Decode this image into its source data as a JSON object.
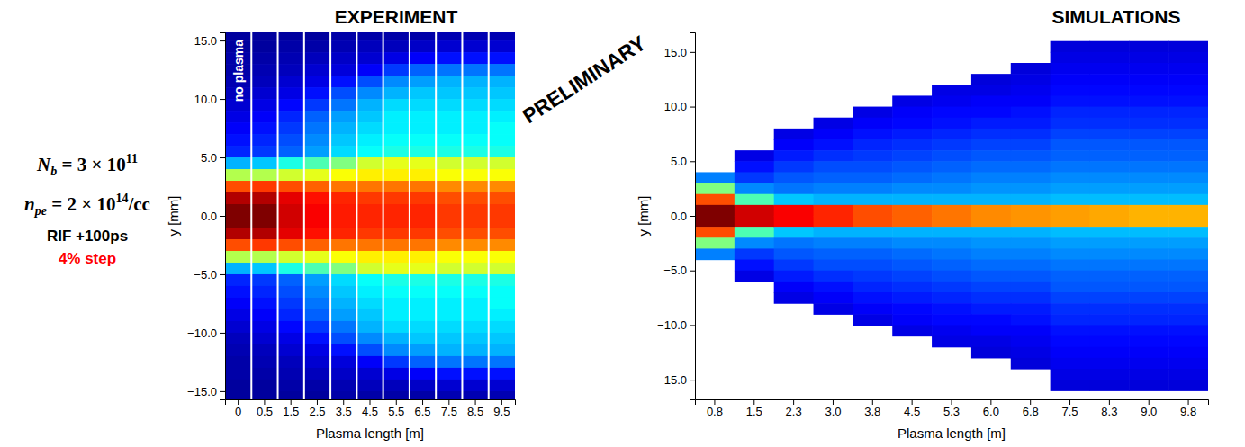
{
  "chart_data": [
    {
      "type": "heatmap",
      "title": "EXPERIMENT",
      "x_label": "Plasma length [m]",
      "y_label": "y [mm]",
      "annotation": "no plasma",
      "categories": [
        "0",
        "0.5",
        "1.5",
        "2.5",
        "3.5",
        "4.5",
        "5.5",
        "6.5",
        "7.5",
        "8.5",
        "9.5"
      ],
      "ylim": [
        -15.7,
        15.7
      ],
      "yticks": [
        {
          "value": 15,
          "label": "15.0"
        },
        {
          "value": 10,
          "label": "10.0"
        },
        {
          "value": 5,
          "label": "5.0"
        },
        {
          "value": 0,
          "label": "0.0"
        },
        {
          "value": -5,
          "label": "−5.0"
        },
        {
          "value": -10,
          "label": "−10.0"
        },
        {
          "value": -15,
          "label": "−15.0"
        }
      ],
      "color_range": [
        0,
        100
      ],
      "y_edges": [
        16,
        15,
        14,
        13,
        12,
        11,
        10,
        9,
        8,
        7,
        6,
        5,
        4,
        3,
        2,
        1,
        0,
        -1,
        -2,
        -3,
        -4,
        -5,
        -6,
        -7,
        -8,
        -9,
        -10,
        -11,
        -12,
        -13,
        -14,
        -15,
        -16
      ],
      "cells": [
        [
          3,
          3,
          4,
          4,
          5,
          6,
          8,
          10,
          12,
          14,
          16,
          30,
          55,
          80,
          95,
          100,
          100,
          95,
          80,
          55,
          30,
          16,
          14,
          12,
          10,
          8,
          6,
          5,
          4,
          4,
          3,
          3
        ],
        [
          3,
          3,
          4,
          5,
          6,
          8,
          10,
          12,
          14,
          16,
          18,
          32,
          55,
          82,
          95,
          100,
          100,
          95,
          82,
          55,
          32,
          18,
          16,
          14,
          12,
          10,
          8,
          6,
          5,
          4,
          3,
          3
        ],
        [
          3,
          4,
          5,
          6,
          8,
          10,
          13,
          16,
          18,
          20,
          22,
          40,
          58,
          80,
          90,
          92,
          92,
          90,
          80,
          58,
          40,
          22,
          20,
          18,
          16,
          13,
          10,
          8,
          6,
          5,
          4,
          3
        ],
        [
          3,
          4,
          6,
          8,
          10,
          14,
          18,
          22,
          24,
          26,
          28,
          45,
          60,
          78,
          86,
          88,
          88,
          86,
          78,
          60,
          45,
          28,
          26,
          24,
          22,
          18,
          14,
          10,
          8,
          6,
          4,
          3
        ],
        [
          4,
          5,
          7,
          9,
          14,
          20,
          24,
          28,
          30,
          32,
          34,
          50,
          62,
          76,
          84,
          85,
          85,
          84,
          76,
          62,
          50,
          34,
          32,
          30,
          28,
          24,
          20,
          14,
          9,
          7,
          5,
          4
        ],
        [
          4,
          6,
          8,
          12,
          20,
          26,
          30,
          32,
          34,
          36,
          38,
          58,
          64,
          76,
          82,
          84,
          84,
          82,
          76,
          64,
          58,
          38,
          36,
          34,
          32,
          30,
          26,
          20,
          12,
          8,
          6,
          4
        ],
        [
          4,
          6,
          10,
          18,
          26,
          30,
          34,
          36,
          36,
          38,
          40,
          60,
          64,
          76,
          82,
          84,
          84,
          82,
          76,
          64,
          60,
          40,
          38,
          36,
          36,
          34,
          30,
          26,
          18,
          10,
          6,
          4
        ],
        [
          4,
          7,
          12,
          22,
          28,
          32,
          34,
          36,
          36,
          38,
          40,
          60,
          64,
          76,
          82,
          84,
          84,
          82,
          76,
          64,
          60,
          40,
          38,
          36,
          36,
          34,
          32,
          28,
          22,
          12,
          7,
          4
        ],
        [
          5,
          8,
          14,
          24,
          30,
          32,
          34,
          36,
          36,
          38,
          40,
          58,
          62,
          74,
          80,
          82,
          82,
          80,
          74,
          62,
          58,
          40,
          38,
          36,
          36,
          34,
          32,
          30,
          24,
          14,
          8,
          5
        ],
        [
          5,
          8,
          14,
          24,
          30,
          32,
          34,
          36,
          36,
          38,
          40,
          58,
          62,
          74,
          80,
          82,
          82,
          80,
          74,
          62,
          58,
          40,
          38,
          36,
          36,
          34,
          32,
          30,
          24,
          14,
          8,
          5
        ],
        [
          5,
          8,
          14,
          24,
          30,
          32,
          34,
          36,
          38,
          38,
          40,
          58,
          62,
          74,
          80,
          82,
          82,
          80,
          74,
          62,
          58,
          40,
          38,
          38,
          36,
          34,
          32,
          30,
          24,
          14,
          8,
          5
        ]
      ]
    },
    {
      "type": "heatmap",
      "title": "SIMULATIONS",
      "x_label": "Plasma length [m]",
      "y_label": "y [mm]",
      "categories": [
        "0.8",
        "1.5",
        "2.3",
        "3.0",
        "3.8",
        "4.5",
        "5.3",
        "6.0",
        "6.8",
        "7.5",
        "8.3",
        "9.0",
        "9.8"
      ],
      "ylim": [
        -16.8,
        16.8
      ],
      "yticks": [
        {
          "value": 15,
          "label": "15.0"
        },
        {
          "value": 10,
          "label": "10.0"
        },
        {
          "value": 5,
          "label": "5.0"
        },
        {
          "value": 0,
          "label": "0.0"
        },
        {
          "value": -5,
          "label": "−5.0"
        },
        {
          "value": -10,
          "label": "−10.0"
        },
        {
          "value": -15,
          "label": "−15.0"
        }
      ],
      "color_range": [
        0,
        100
      ],
      "y_edges": [
        17,
        16,
        15,
        14,
        13,
        12,
        11,
        10,
        9,
        8,
        7,
        6,
        5,
        4,
        3,
        2,
        1,
        0,
        -1,
        -2,
        -3,
        -4,
        -5,
        -6,
        -7,
        -8,
        -9,
        -10,
        -11,
        -12,
        -13,
        -14,
        -15,
        -16,
        -17
      ],
      "cells": [
        [
          null,
          null,
          null,
          null,
          null,
          null,
          null,
          null,
          null,
          null,
          null,
          null,
          null,
          25,
          50,
          80,
          100,
          100,
          80,
          50,
          25,
          null,
          null,
          null,
          null,
          null,
          null,
          null,
          null,
          null,
          null,
          null,
          null,
          null
        ],
        [
          null,
          null,
          null,
          null,
          null,
          null,
          null,
          null,
          null,
          null,
          null,
          10,
          14,
          18,
          26,
          45,
          92,
          92,
          45,
          26,
          18,
          14,
          10,
          null,
          null,
          null,
          null,
          null,
          null,
          null,
          null,
          null,
          null,
          null
        ],
        [
          null,
          null,
          null,
          null,
          null,
          null,
          null,
          null,
          null,
          10,
          12,
          15,
          18,
          21,
          24,
          32,
          88,
          88,
          32,
          24,
          21,
          18,
          15,
          12,
          10,
          null,
          null,
          null,
          null,
          null,
          null,
          null,
          null,
          null
        ],
        [
          null,
          null,
          null,
          null,
          null,
          null,
          null,
          null,
          10,
          12,
          14,
          17,
          20,
          22,
          25,
          30,
          84,
          84,
          30,
          25,
          22,
          20,
          17,
          14,
          12,
          10,
          null,
          null,
          null,
          null,
          null,
          null,
          null,
          null
        ],
        [
          null,
          null,
          null,
          null,
          null,
          null,
          null,
          10,
          12,
          14,
          16,
          18,
          20,
          22,
          25,
          30,
          80,
          80,
          30,
          25,
          22,
          20,
          18,
          16,
          14,
          12,
          10,
          null,
          null,
          null,
          null,
          null,
          null,
          null
        ],
        [
          null,
          null,
          null,
          null,
          null,
          null,
          10,
          12,
          13,
          15,
          17,
          19,
          21,
          23,
          26,
          30,
          78,
          78,
          30,
          26,
          23,
          21,
          19,
          17,
          15,
          13,
          12,
          10,
          null,
          null,
          null,
          null,
          null,
          null
        ],
        [
          null,
          null,
          null,
          null,
          null,
          10,
          11,
          13,
          14,
          16,
          18,
          20,
          22,
          24,
          26,
          30,
          76,
          76,
          30,
          26,
          24,
          22,
          20,
          18,
          16,
          14,
          13,
          11,
          10,
          null,
          null,
          null,
          null,
          null
        ],
        [
          null,
          null,
          null,
          null,
          9,
          10,
          12,
          13,
          15,
          17,
          19,
          21,
          23,
          25,
          27,
          30,
          74,
          74,
          30,
          27,
          25,
          23,
          21,
          19,
          17,
          15,
          13,
          12,
          10,
          9,
          null,
          null,
          null,
          null
        ],
        [
          null,
          null,
          null,
          9,
          10,
          11,
          12,
          14,
          15,
          17,
          19,
          21,
          23,
          25,
          27,
          30,
          73,
          73,
          30,
          27,
          25,
          23,
          21,
          19,
          17,
          15,
          14,
          12,
          11,
          10,
          9,
          null,
          null,
          null
        ],
        [
          null,
          9,
          10,
          11,
          12,
          13,
          14,
          16,
          17,
          19,
          21,
          22,
          24,
          26,
          28,
          31,
          72,
          72,
          31,
          28,
          26,
          24,
          22,
          21,
          19,
          17,
          16,
          14,
          13,
          12,
          11,
          10,
          9,
          null
        ],
        [
          null,
          9,
          10,
          11,
          12,
          13,
          14,
          16,
          17,
          19,
          21,
          22,
          24,
          26,
          28,
          31,
          71,
          71,
          31,
          28,
          26,
          24,
          22,
          21,
          19,
          17,
          16,
          14,
          13,
          12,
          11,
          10,
          9,
          null
        ],
        [
          null,
          9,
          10,
          11,
          12,
          13,
          14,
          16,
          17,
          19,
          21,
          22,
          24,
          26,
          28,
          31,
          70,
          70,
          31,
          28,
          26,
          24,
          22,
          21,
          19,
          17,
          16,
          14,
          13,
          12,
          11,
          10,
          9,
          null
        ],
        [
          null,
          9,
          10,
          11,
          12,
          13,
          14,
          16,
          17,
          19,
          21,
          22,
          24,
          26,
          28,
          31,
          70,
          70,
          31,
          28,
          26,
          24,
          22,
          21,
          19,
          17,
          16,
          14,
          13,
          12,
          11,
          10,
          9,
          null
        ]
      ]
    }
  ],
  "parameters": [
    {
      "main": "N",
      "sub": "b",
      "rest": " = 3 × 10",
      "sup": "11"
    },
    {
      "main": "n",
      "sub": "pe",
      "rest": " = 2 × 10",
      "sup": "14",
      "tail": "/cc"
    },
    {
      "text": "RIF +100ps"
    },
    {
      "text": "4% step",
      "color": "#ff0000"
    }
  ],
  "stamp": "PRELIMINARY"
}
